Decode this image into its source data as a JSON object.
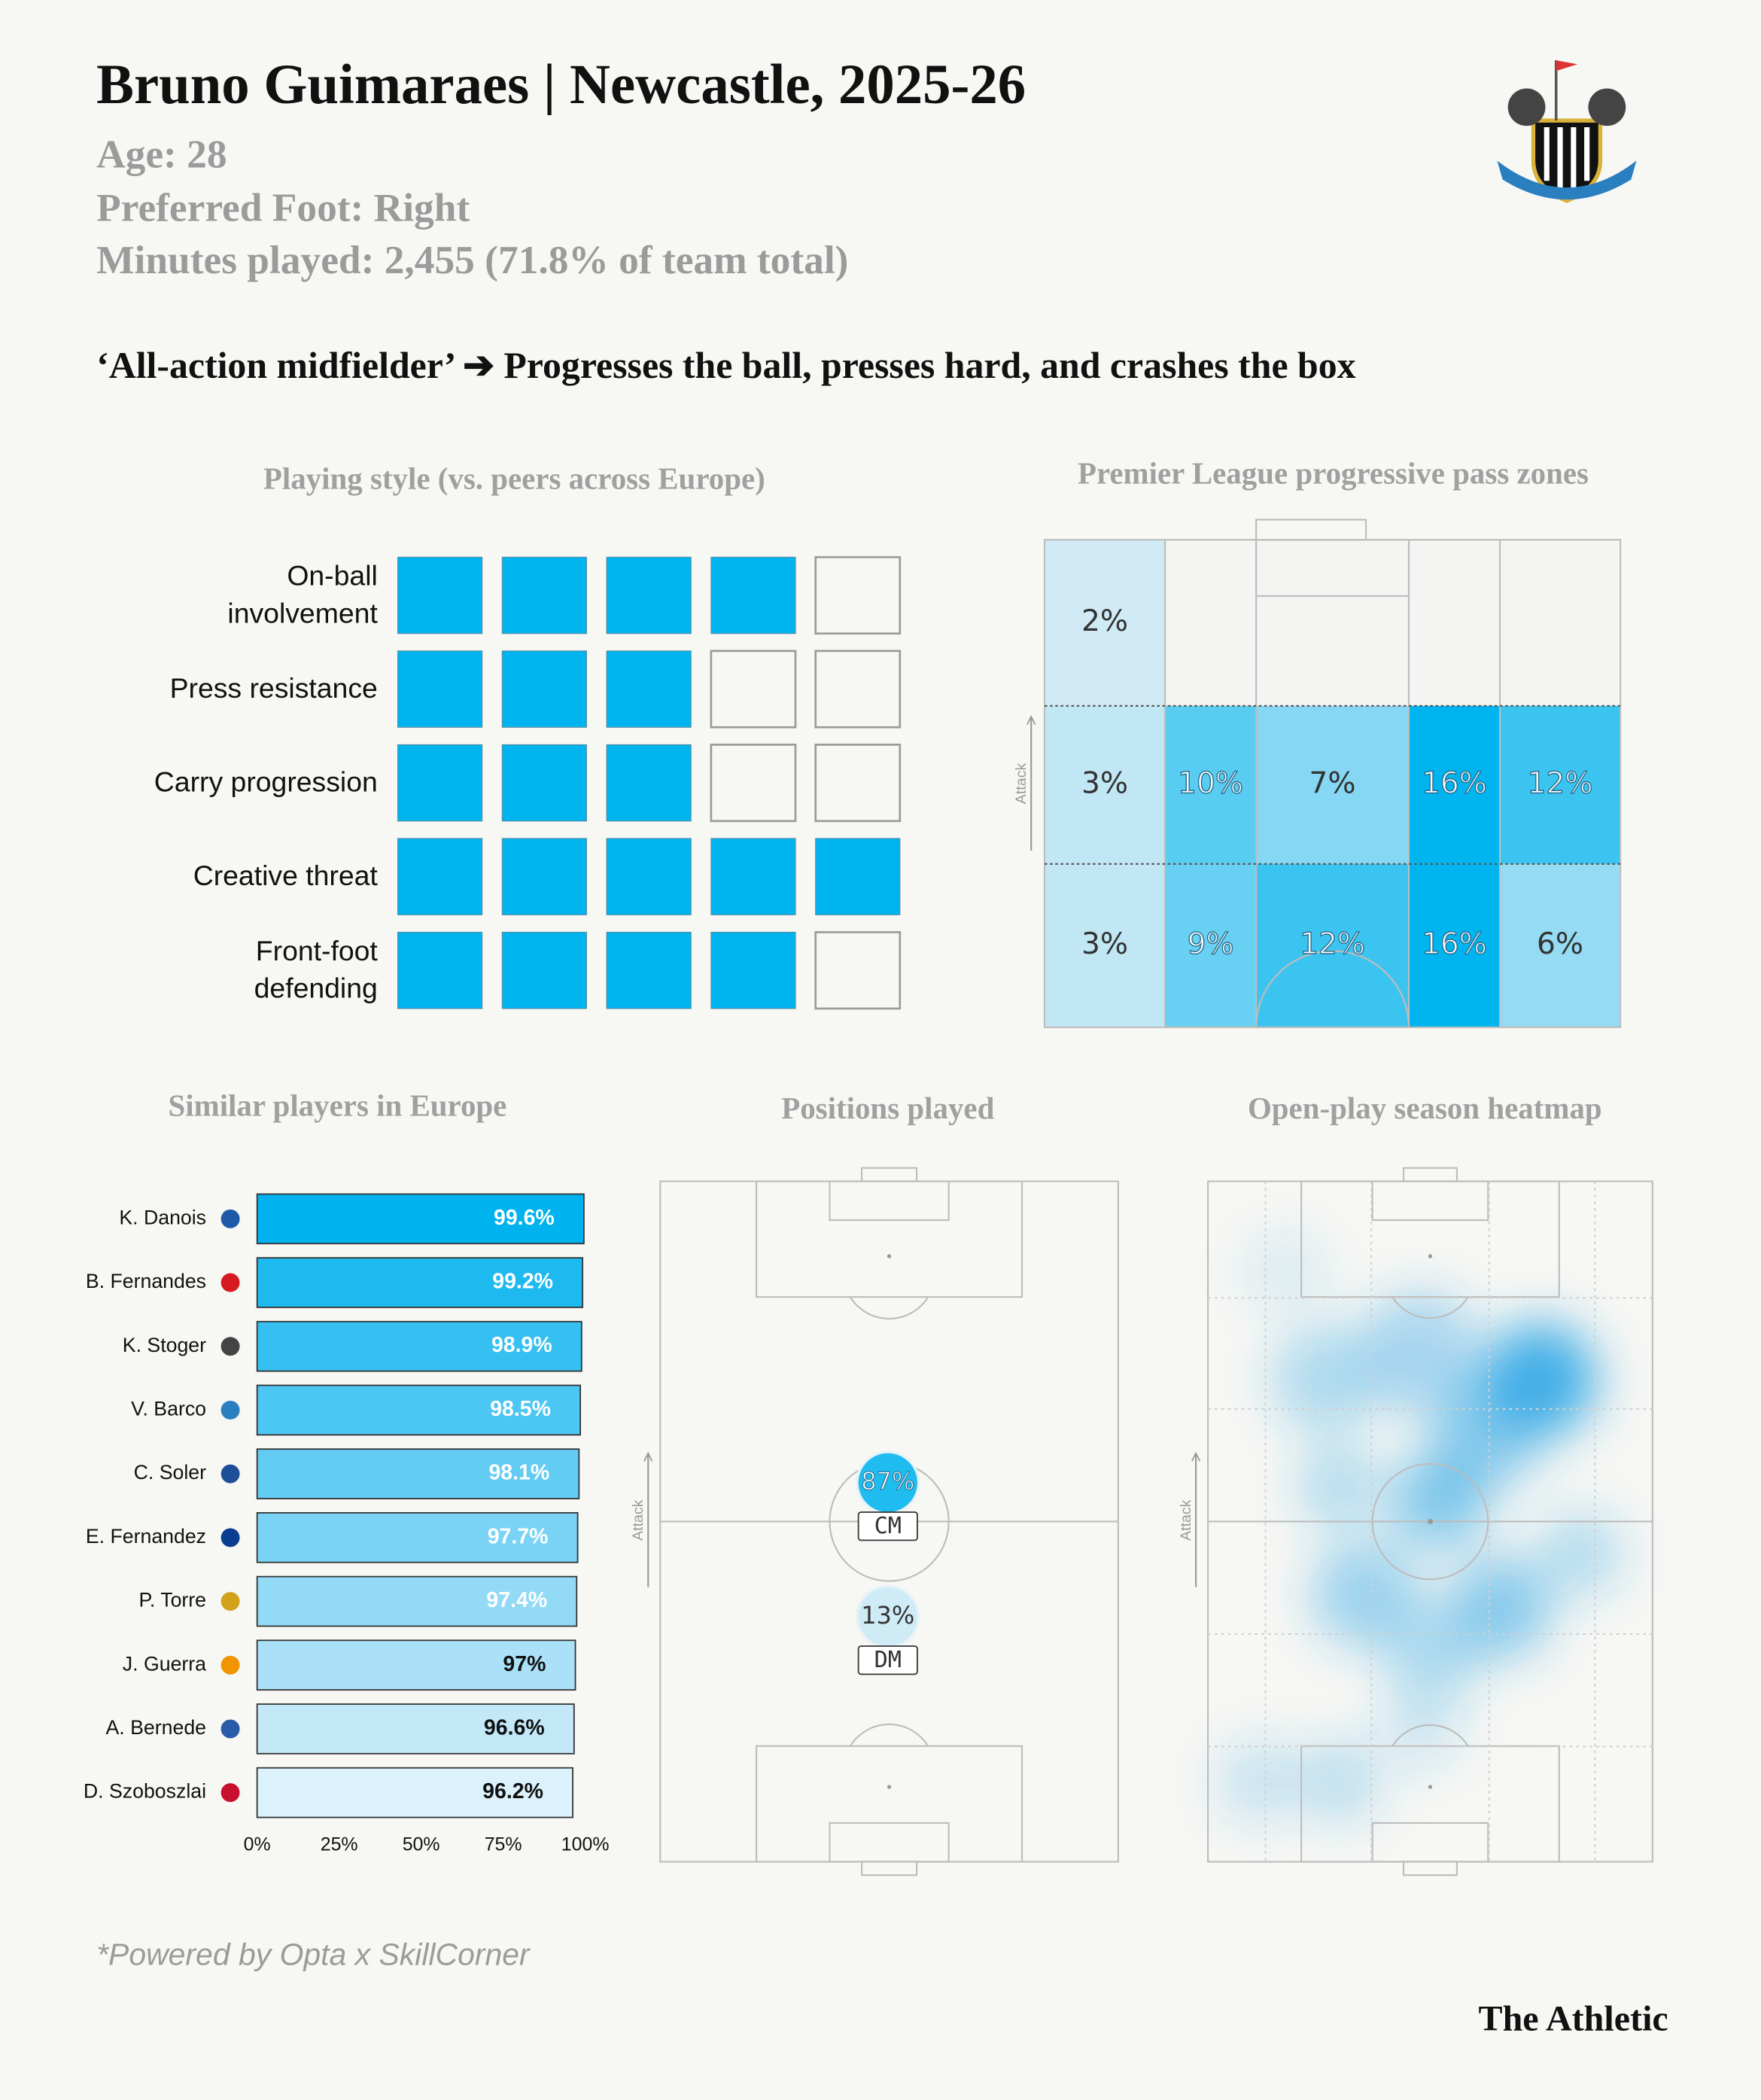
{
  "header": {
    "title": "Bruno Guimaraes | Newcastle, 2025-26",
    "age": "Age: 28",
    "foot": "Preferred Foot: Right",
    "minutes": "Minutes played: 2,455 (71.8% of team total)",
    "headline": "‘All-action midfielder’ ➔ Progresses the ball, presses hard, and crashes the box"
  },
  "chart_data": [
    {
      "type": "rating",
      "title": "Playing style (vs. peers across Europe)",
      "categories": [
        "On-ball\ninvolvement",
        "Press resistance",
        "Carry progression",
        "Creative threat",
        "Front-foot\ndefending"
      ],
      "values": [
        4,
        3,
        3,
        5,
        4
      ],
      "max": 5,
      "color": "#00b4ef"
    },
    {
      "type": "zones",
      "title": "Premier League progressive pass zones",
      "axis_label": "Attack",
      "values": [
        [
          2,
          null,
          null,
          null,
          null
        ],
        [
          3,
          10,
          7,
          16,
          12
        ],
        [
          3,
          9,
          12,
          16,
          6
        ]
      ],
      "value_labels": [
        [
          "2%",
          null,
          null,
          null,
          null
        ],
        [
          "3%",
          "10%",
          "7%",
          "16%",
          "12%"
        ],
        [
          "3%",
          "9%",
          "12%",
          "16%",
          "6%"
        ]
      ],
      "color": "#00b4ef"
    },
    {
      "type": "hbar",
      "title": "Similar players in Europe",
      "categories": [
        "K. Danois",
        "B. Fernandes",
        "K. Stoger",
        "V. Barco",
        "C. Soler",
        "E. Fernandez",
        "P. Torre",
        "J. Guerra",
        "A. Bernede",
        "D. Szoboszlai"
      ],
      "values": [
        99.6,
        99.2,
        98.9,
        98.5,
        98.1,
        97.7,
        97.4,
        97,
        96.6,
        96.2
      ],
      "value_labels": [
        "99.6%",
        "99.2%",
        "98.9%",
        "98.5%",
        "98.1%",
        "97.7%",
        "97.4%",
        "97%",
        "96.6%",
        "96.2%"
      ],
      "colors": [
        "#00b2ee",
        "#1dbaf0",
        "#35c0f1",
        "#4cc6f2",
        "#62ccf3",
        "#7ad3f5",
        "#92daf6",
        "#aae1f8",
        "#c3e9f9",
        "#dbf1fb"
      ],
      "xlim": [
        0,
        100
      ],
      "xticks": [
        {
          "value": 0,
          "label": "0%"
        },
        {
          "value": 25,
          "label": "25%"
        },
        {
          "value": 50,
          "label": "50%"
        },
        {
          "value": 75,
          "label": "75%"
        },
        {
          "value": 100,
          "label": "100%"
        }
      ]
    },
    {
      "type": "positions",
      "title": "Positions played",
      "axis_label": "Attack",
      "categories": [
        "CM",
        "DM"
      ],
      "values": [
        87,
        13
      ],
      "value_labels": [
        "87%",
        "13%"
      ],
      "color": "#00b4ef"
    },
    {
      "type": "heatmap",
      "title": "Open-play season heatmap",
      "axis_label": "Attack"
    }
  ],
  "footer": {
    "source": "*Powered by Opta x SkillCorner",
    "brand": "The Athletic"
  }
}
